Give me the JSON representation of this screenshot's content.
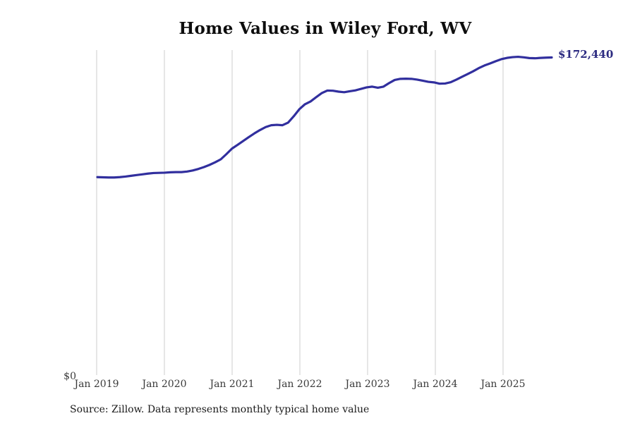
{
  "chart": {
    "title": "Home Values in Wiley Ford, WV",
    "end_label": "$172,440",
    "y_axis": {
      "zero_label": "$0"
    },
    "source_note": "Source: Zillow. Data represents monthly typical home value",
    "colors": {
      "line": "#312f9e",
      "end_label_text": "#2b2a80",
      "gridline": "#cccccc",
      "tick_text": "#3a3a3a",
      "title_text": "#0d0d0d"
    }
  },
  "chart_data": {
    "type": "line",
    "title": "Home Values in Wiley Ford, WV",
    "series_name": "Monthly typical home value (USD)",
    "x_tick_labels": [
      "Jan 2019",
      "Jan 2020",
      "Jan 2021",
      "Jan 2022",
      "Jan 2023",
      "Jan 2024",
      "Jan 2025"
    ],
    "grid": "vertical-only",
    "legend": "none",
    "ylim": [
      0,
      176400
    ],
    "xlabel": "",
    "ylabel": "",
    "latest_value": 172440,
    "latest_value_label": "$172,440",
    "x": [
      "2019-01",
      "2019-02",
      "2019-03",
      "2019-04",
      "2019-05",
      "2019-06",
      "2019-07",
      "2019-08",
      "2019-09",
      "2019-10",
      "2019-11",
      "2019-12",
      "2020-01",
      "2020-02",
      "2020-03",
      "2020-04",
      "2020-05",
      "2020-06",
      "2020-07",
      "2020-08",
      "2020-09",
      "2020-10",
      "2020-11",
      "2020-12",
      "2021-01",
      "2021-02",
      "2021-03",
      "2021-04",
      "2021-05",
      "2021-06",
      "2021-07",
      "2021-08",
      "2021-09",
      "2021-10",
      "2021-11",
      "2021-12",
      "2022-01",
      "2022-02",
      "2022-03",
      "2022-04",
      "2022-05",
      "2022-06",
      "2022-07",
      "2022-08",
      "2022-09",
      "2022-10",
      "2022-11",
      "2022-12",
      "2023-01",
      "2023-02",
      "2023-03",
      "2023-04",
      "2023-05",
      "2023-06",
      "2023-07",
      "2023-08",
      "2023-09",
      "2023-10",
      "2023-11",
      "2023-12",
      "2024-01",
      "2024-02",
      "2024-03",
      "2024-04",
      "2024-05",
      "2024-06",
      "2024-07",
      "2024-08",
      "2024-09",
      "2024-10",
      "2024-11",
      "2024-12",
      "2025-01",
      "2025-02",
      "2025-03",
      "2025-04",
      "2025-05",
      "2025-06",
      "2025-07",
      "2025-08",
      "2025-09",
      "2025-10"
    ],
    "values": [
      107900,
      107800,
      107700,
      107700,
      107900,
      108200,
      108600,
      109000,
      109400,
      109800,
      110100,
      110200,
      110300,
      110500,
      110600,
      110600,
      110900,
      111500,
      112300,
      113300,
      114500,
      115900,
      117500,
      120300,
      123300,
      125300,
      127400,
      129500,
      131500,
      133300,
      134900,
      135900,
      136100,
      135900,
      137300,
      140700,
      144500,
      147200,
      148700,
      151000,
      153200,
      154600,
      154500,
      154000,
      153700,
      154200,
      154700,
      155500,
      156300,
      156700,
      156100,
      156700,
      158600,
      160300,
      160900,
      161000,
      160900,
      160500,
      159900,
      159300,
      159000,
      158300,
      158400,
      159100,
      160500,
      162000,
      163500,
      165000,
      166700,
      168100,
      169200,
      170400,
      171500,
      172200,
      172600,
      172800,
      172500,
      172100,
      172000,
      172200,
      172350,
      172440
    ]
  }
}
